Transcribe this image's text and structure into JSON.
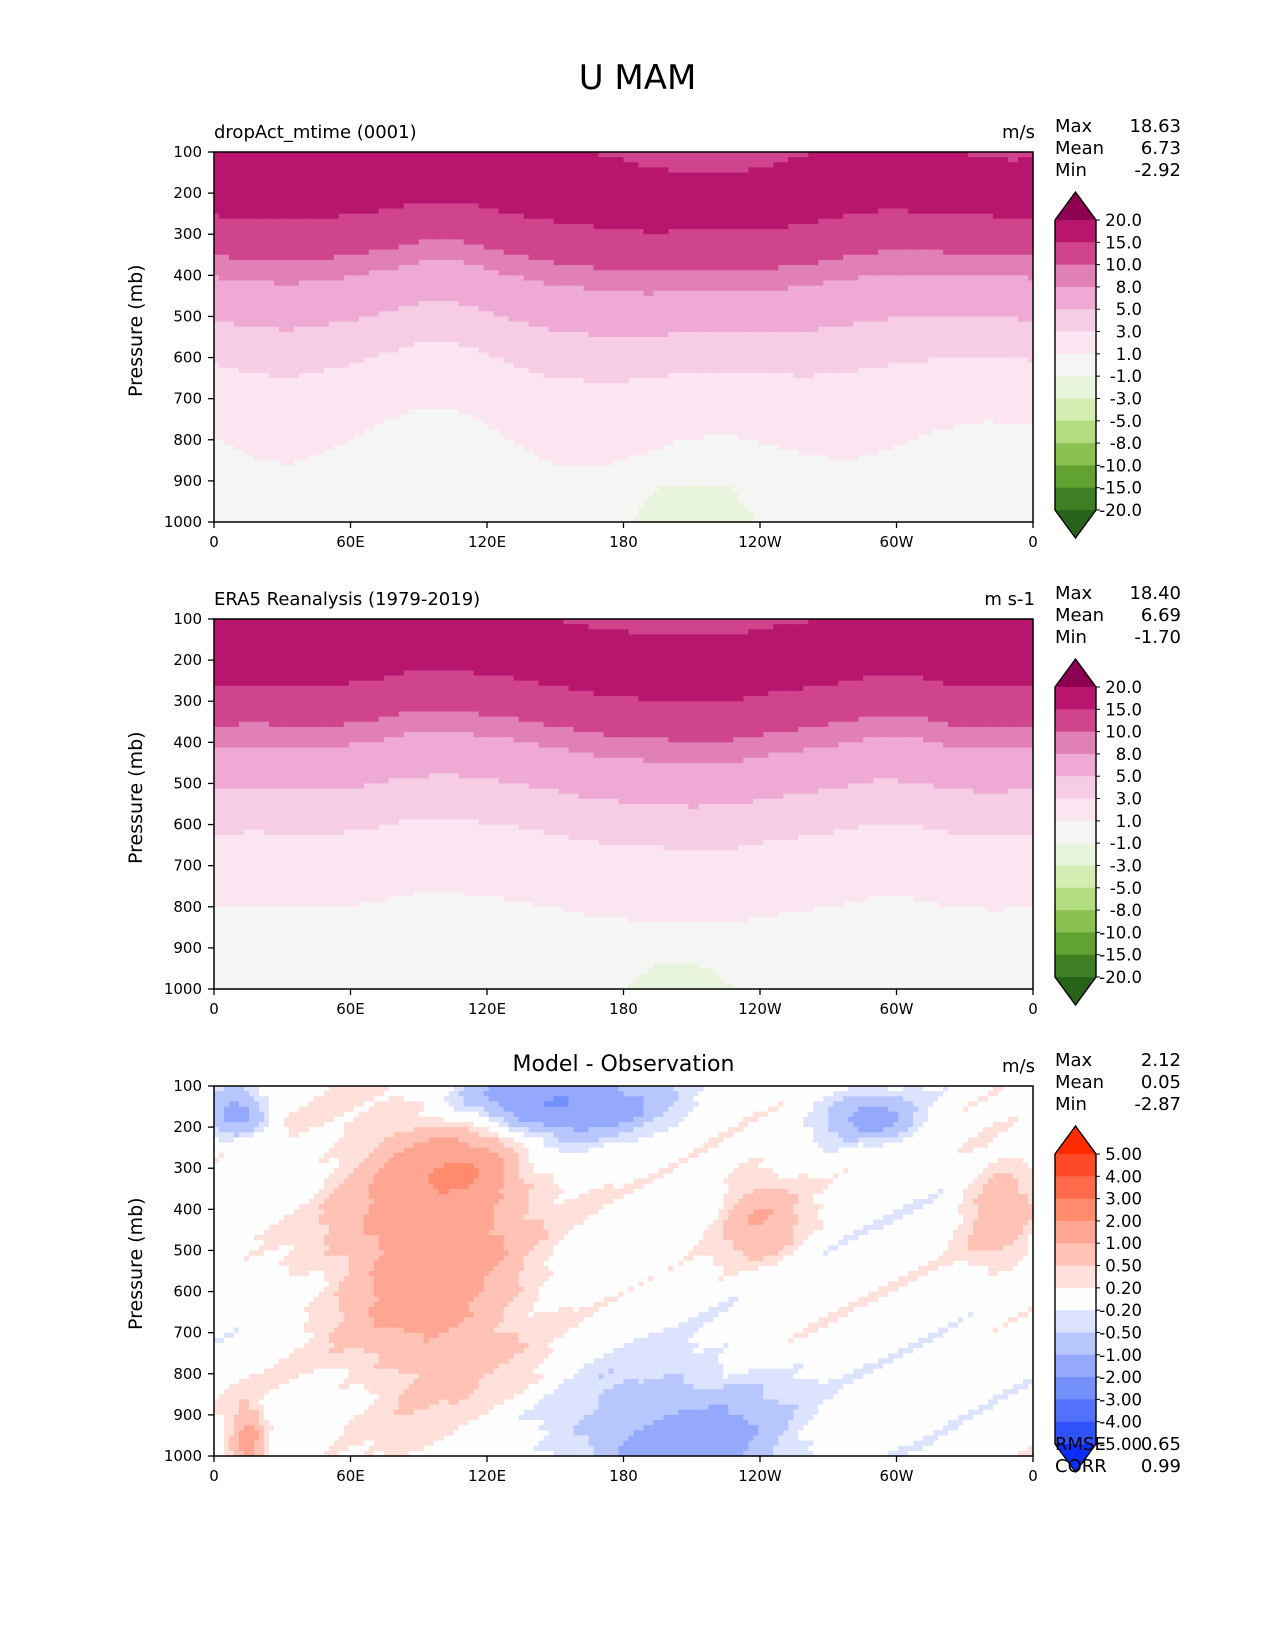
{
  "title": "U MAM",
  "chart_data": [
    {
      "type": "heatmap",
      "subtype": "filled-contour",
      "title_left": "dropAct_mtime (0001)",
      "units": "m/s",
      "xlabel": "",
      "ylabel": "Pressure (mb)",
      "xticks": [
        "0",
        "60E",
        "120E",
        "180",
        "120W",
        "60W",
        "0"
      ],
      "xlim_deg": [
        0,
        360
      ],
      "yticks": [
        100,
        200,
        300,
        400,
        500,
        600,
        700,
        800,
        900,
        1000
      ],
      "ylim": [
        1000,
        100
      ],
      "stats": {
        "Max": "18.63",
        "Mean": "6.73",
        "Min": "-2.92"
      },
      "colorbar": {
        "extend": "both",
        "levels": [
          "20.0",
          "15.0",
          "10.0",
          "8.0",
          "5.0",
          "3.0",
          "1.0",
          "-1.0",
          "-3.0",
          "-5.0",
          "-8.0",
          "-10.0",
          "-15.0",
          "-20.0"
        ],
        "colors": [
          "#8e0152",
          "#b8166e",
          "#d0448e",
          "#e080b4",
          "#eeaad4",
          "#f7cde5",
          "#fae5f0",
          "#f5f5f3",
          "#e9f4dc",
          "#d2ecb2",
          "#b2dc80",
          "#8bc150",
          "#62a233",
          "#3f7e22",
          "#276419"
        ]
      },
      "bands_description": "Westerly wind contours: max ~20 m/s near 200 mb, decreasing toward surface; weak easterlies near 1000 mb around 180-90W"
    },
    {
      "type": "heatmap",
      "subtype": "filled-contour",
      "title_left": "ERA5 Reanalysis (1979-2019)",
      "units": "m s-1",
      "xlabel": "",
      "ylabel": "Pressure (mb)",
      "xticks": [
        "0",
        "60E",
        "120E",
        "180",
        "120W",
        "60W",
        "0"
      ],
      "xlim_deg": [
        0,
        360
      ],
      "yticks": [
        100,
        200,
        300,
        400,
        500,
        600,
        700,
        800,
        900,
        1000
      ],
      "ylim": [
        1000,
        100
      ],
      "stats": {
        "Max": "18.40",
        "Mean": "6.69",
        "Min": "-1.70"
      },
      "colorbar": {
        "extend": "both",
        "levels": [
          "20.0",
          "15.0",
          "10.0",
          "8.0",
          "5.0",
          "3.0",
          "1.0",
          "-1.0",
          "-3.0",
          "-5.0",
          "-8.0",
          "-10.0",
          "-15.0",
          "-20.0"
        ],
        "colors": [
          "#8e0152",
          "#b8166e",
          "#d0448e",
          "#e080b4",
          "#eeaad4",
          "#f7cde5",
          "#fae5f0",
          "#f5f5f3",
          "#e9f4dc",
          "#d2ecb2",
          "#b2dc80",
          "#8bc150",
          "#62a233",
          "#3f7e22",
          "#276419"
        ]
      }
    },
    {
      "type": "heatmap",
      "subtype": "filled-contour",
      "title_center": "Model - Observation",
      "units": "m/s",
      "xlabel": "",
      "ylabel": "Pressure (mb)",
      "xticks": [
        "0",
        "60E",
        "120E",
        "180",
        "120W",
        "60W",
        "0"
      ],
      "xlim_deg": [
        0,
        360
      ],
      "yticks": [
        100,
        200,
        300,
        400,
        500,
        600,
        700,
        800,
        900,
        1000
      ],
      "ylim": [
        1000,
        100
      ],
      "stats": {
        "Max": "2.12",
        "Mean": "0.05",
        "Min": "-2.87"
      },
      "metrics": {
        "RMSE": "0.65",
        "CORR": "0.99"
      },
      "colorbar": {
        "extend": "both",
        "levels": [
          "5.00",
          "4.00",
          "3.00",
          "2.00",
          "1.00",
          "0.50",
          "0.20",
          "-0.20",
          "-0.50",
          "-1.00",
          "-2.00",
          "-3.00",
          "-4.00",
          "-5.00"
        ],
        "colors": [
          "#ff2a00",
          "#ff4a28",
          "#ff6a4a",
          "#ff8a6c",
          "#ffa593",
          "#ffc2b4",
          "#ffe0da",
          "#fefefe",
          "#dce3fe",
          "#b8c6fe",
          "#94a9fc",
          "#7390fb",
          "#5272fb",
          "#3052fb",
          "#0a2efb"
        ]
      }
    }
  ]
}
